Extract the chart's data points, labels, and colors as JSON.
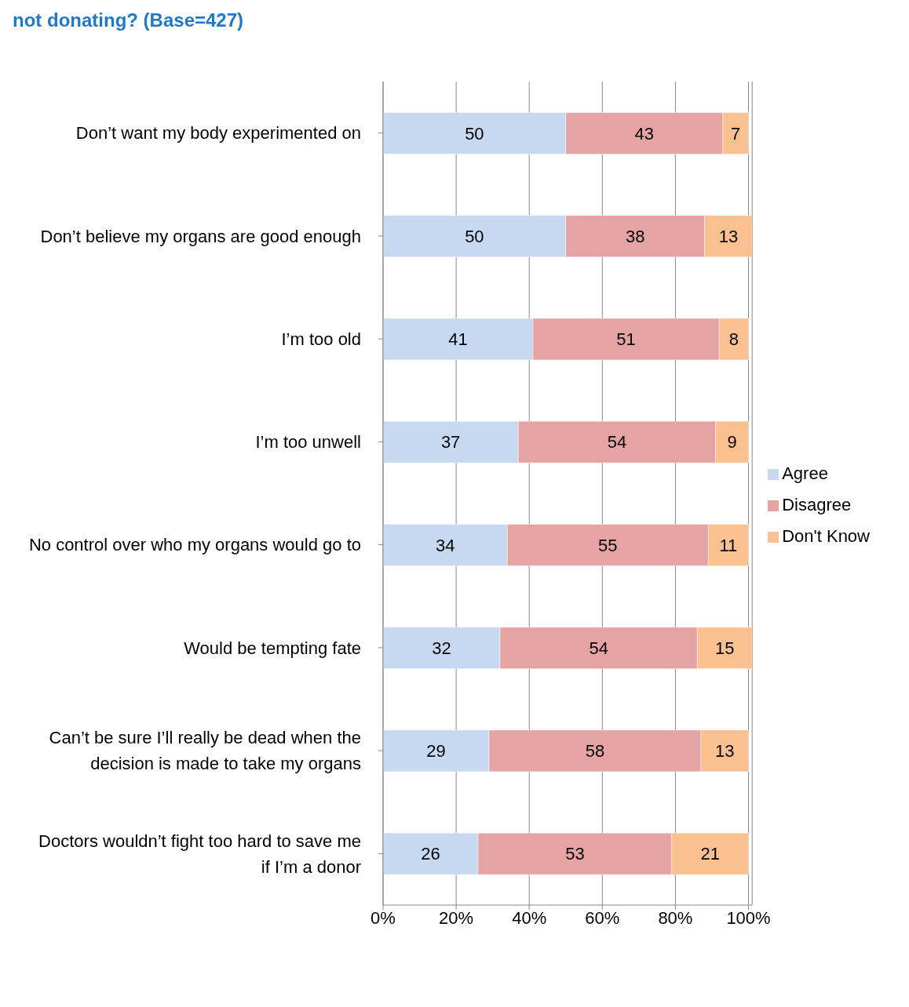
{
  "chart_data": {
    "type": "bar",
    "orientation": "horizontal",
    "stacked": true,
    "title": "not donating? (Base=427)",
    "categories": [
      "Don’t want my body experimented on",
      "Don’t believe my organs are good enough",
      "I’m too old",
      "I’m too unwell",
      "No control over who my organs would go to",
      "Would be tempting fate",
      "Can’t be sure I’ll really be dead when the decision is made to take my organs",
      "Doctors wouldn’t fight too hard to save me if I’m a donor"
    ],
    "series": [
      {
        "name": "Agree",
        "color": "#c6d9f1",
        "values": [
          50,
          50,
          41,
          37,
          34,
          32,
          29,
          26
        ]
      },
      {
        "name": "Disagree",
        "color": "#e6a3a3",
        "values": [
          43,
          38,
          51,
          54,
          55,
          54,
          58,
          53
        ]
      },
      {
        "name": "Don't Know",
        "color": "#fac08f",
        "values": [
          7,
          13,
          8,
          9,
          11,
          15,
          13,
          21
        ]
      }
    ],
    "xlim": [
      0,
      101
    ],
    "xticks": [
      {
        "value": 0,
        "label": "0%"
      },
      {
        "value": 20,
        "label": "20%"
      },
      {
        "value": 40,
        "label": "40%"
      },
      {
        "value": 60,
        "label": "60%"
      },
      {
        "value": 80,
        "label": "80%"
      },
      {
        "value": 100,
        "label": "100%"
      }
    ],
    "grid": "x",
    "legend": "right",
    "data_labels": true
  }
}
